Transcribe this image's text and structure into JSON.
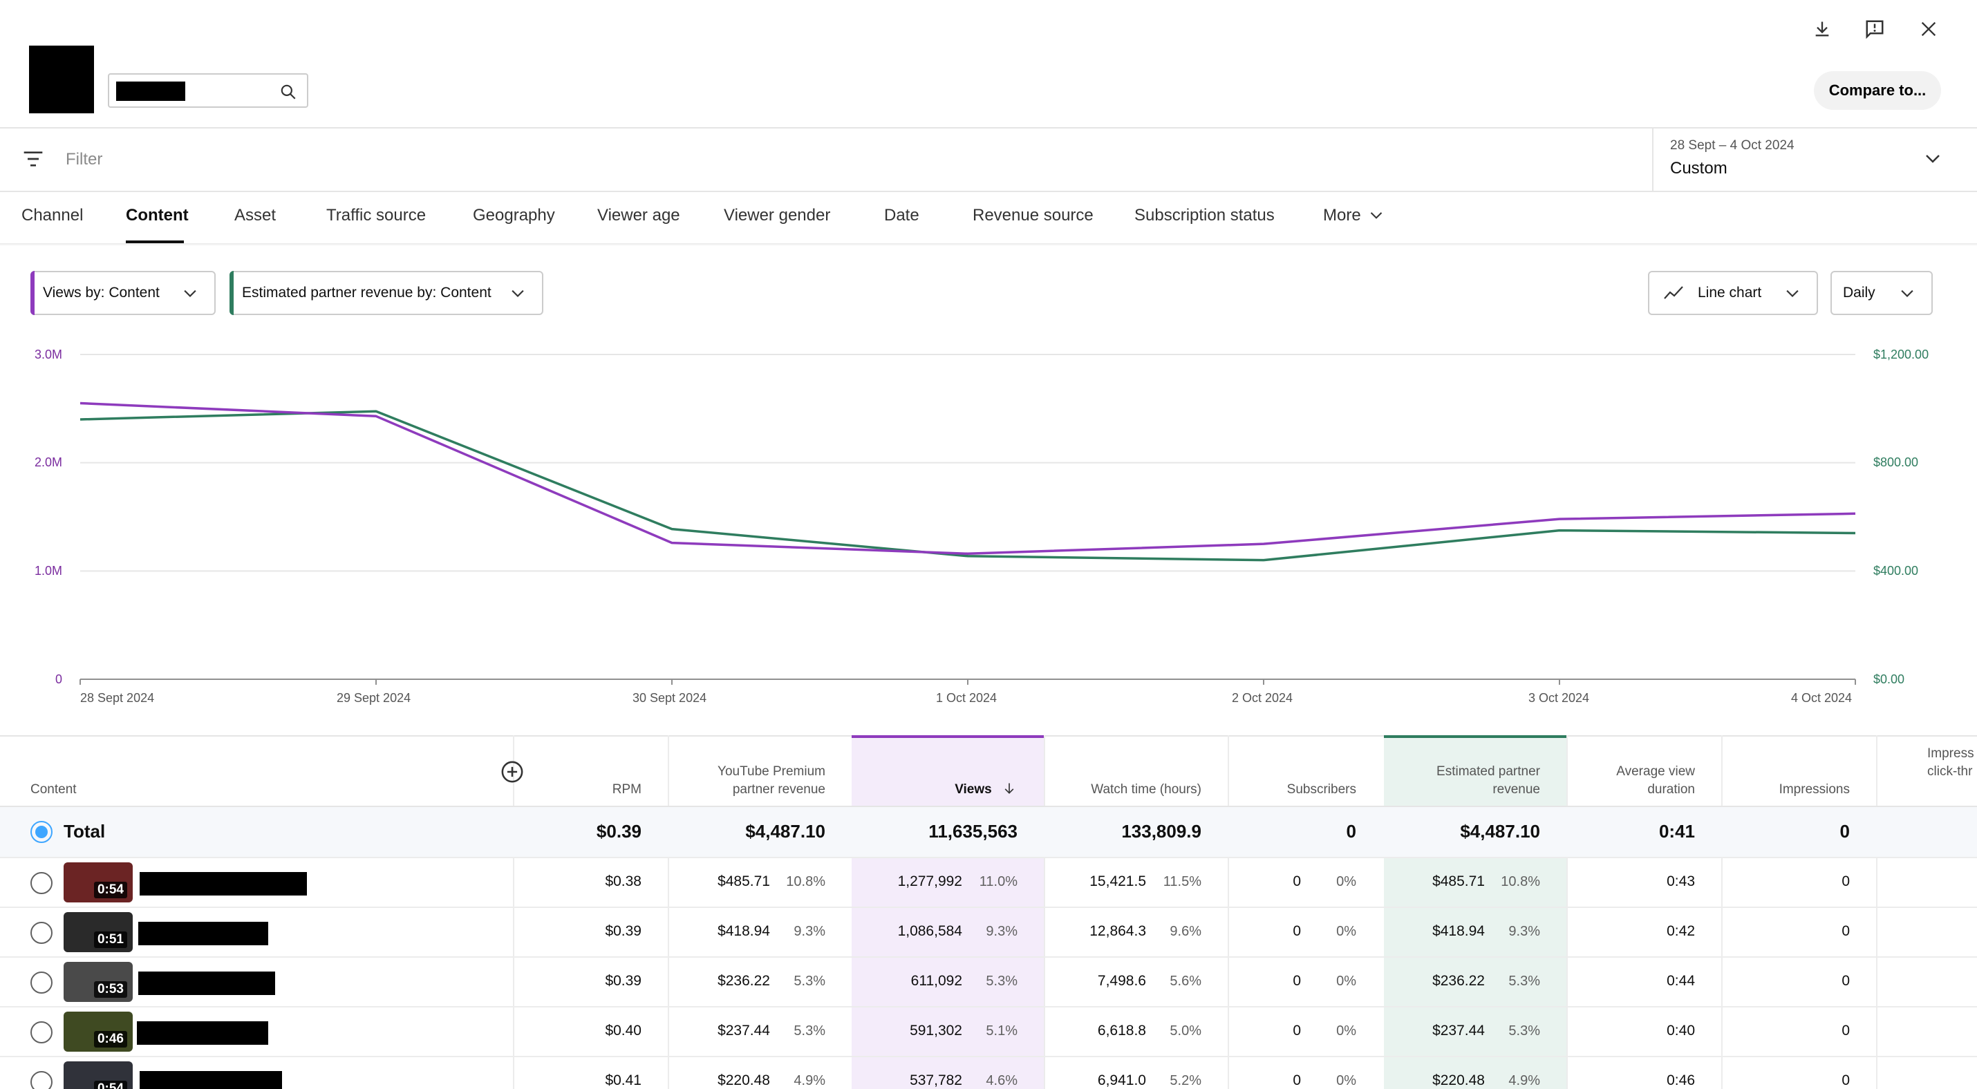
{
  "header": {
    "compare_label": "Compare to...",
    "icons": [
      "download-icon",
      "feedback-icon",
      "close-icon"
    ]
  },
  "filter": {
    "placeholder": "Filter"
  },
  "date": {
    "range": "28 Sept – 4 Oct 2024",
    "mode": "Custom"
  },
  "tabs": [
    "Channel",
    "Content",
    "Asset",
    "Traffic source",
    "Geography",
    "Viewer age",
    "Viewer gender",
    "Date",
    "Revenue source",
    "Subscription status",
    "More"
  ],
  "active_tab": "Content",
  "chips": {
    "metric1": "Views by: Content",
    "metric2": "Estimated partner revenue by: Content",
    "chart_type": "Line chart",
    "interval": "Daily"
  },
  "colors": {
    "views": "#8e3bbd",
    "revenue": "#2f7d5f",
    "accent": "#3ea6ff"
  },
  "chart_data": {
    "type": "line",
    "x": [
      "28 Sept 2024",
      "29 Sept 2024",
      "30 Sept 2024",
      "1 Oct 2024",
      "2 Oct 2024",
      "3 Oct 2024",
      "4 Oct 2024"
    ],
    "left_ticks": [
      "3.0M",
      "2.0M",
      "1.0M",
      "0"
    ],
    "right_ticks": [
      "$1,200.00",
      "$800.00",
      "$400.00",
      "$0.00"
    ],
    "ylim_left": [
      0,
      3000000
    ],
    "ylim_right": [
      0,
      1200
    ],
    "series": [
      {
        "name": "Views",
        "axis": "left",
        "color": "#8e3bbd",
        "values": [
          2550000,
          2430000,
          1260000,
          1160000,
          1250000,
          1480000,
          1530000
        ]
      },
      {
        "name": "Estimated partner revenue",
        "axis": "right",
        "color": "#2f7d5f",
        "values": [
          960,
          990,
          555,
          455,
          440,
          550,
          540
        ]
      }
    ]
  },
  "table": {
    "headers": {
      "content": "Content",
      "rpm": "RPM",
      "premium": [
        "YouTube Premium",
        "partner revenue"
      ],
      "views": "Views",
      "watch": "Watch time (hours)",
      "subs": "Subscribers",
      "revenue": [
        "Estimated partner",
        "revenue"
      ],
      "avg": [
        "Average view",
        "duration"
      ],
      "impr": "Impressions",
      "ctr": [
        "Impress",
        "click-thr"
      ]
    },
    "total": {
      "label": "Total",
      "rpm": "$0.39",
      "premium": "$4,487.10",
      "views": "11,635,563",
      "watch": "133,809.9",
      "subs": "0",
      "revenue": "$4,487.10",
      "avg": "0:41",
      "impr": "0"
    },
    "rows": [
      {
        "dur": "0:54",
        "rpm": "$0.38",
        "premium": "$485.71",
        "premium_pct": "10.8%",
        "views": "1,277,992",
        "views_pct": "11.0%",
        "watch": "15,421.5",
        "watch_pct": "11.5%",
        "subs": "0",
        "subs_pct": "0%",
        "revenue": "$485.71",
        "revenue_pct": "10.8%",
        "avg": "0:43",
        "impr": "0"
      },
      {
        "dur": "0:51",
        "rpm": "$0.39",
        "premium": "$418.94",
        "premium_pct": "9.3%",
        "views": "1,086,584",
        "views_pct": "9.3%",
        "watch": "12,864.3",
        "watch_pct": "9.6%",
        "subs": "0",
        "subs_pct": "0%",
        "revenue": "$418.94",
        "revenue_pct": "9.3%",
        "avg": "0:42",
        "impr": "0"
      },
      {
        "dur": "0:53",
        "rpm": "$0.39",
        "premium": "$236.22",
        "premium_pct": "5.3%",
        "views": "611,092",
        "views_pct": "5.3%",
        "watch": "7,498.6",
        "watch_pct": "5.6%",
        "subs": "0",
        "subs_pct": "0%",
        "revenue": "$236.22",
        "revenue_pct": "5.3%",
        "avg": "0:44",
        "impr": "0"
      },
      {
        "dur": "0:46",
        "rpm": "$0.40",
        "premium": "$237.44",
        "premium_pct": "5.3%",
        "views": "591,302",
        "views_pct": "5.1%",
        "watch": "6,618.8",
        "watch_pct": "5.0%",
        "subs": "0",
        "subs_pct": "0%",
        "revenue": "$237.44",
        "revenue_pct": "5.3%",
        "avg": "0:40",
        "impr": "0"
      },
      {
        "dur": "0:54",
        "rpm": "$0.41",
        "premium": "$220.48",
        "premium_pct": "4.9%",
        "views": "537,782",
        "views_pct": "4.6%",
        "watch": "6,941.0",
        "watch_pct": "5.2%",
        "subs": "0",
        "subs_pct": "0%",
        "revenue": "$220.48",
        "revenue_pct": "4.9%",
        "avg": "0:46",
        "impr": "0"
      }
    ]
  }
}
